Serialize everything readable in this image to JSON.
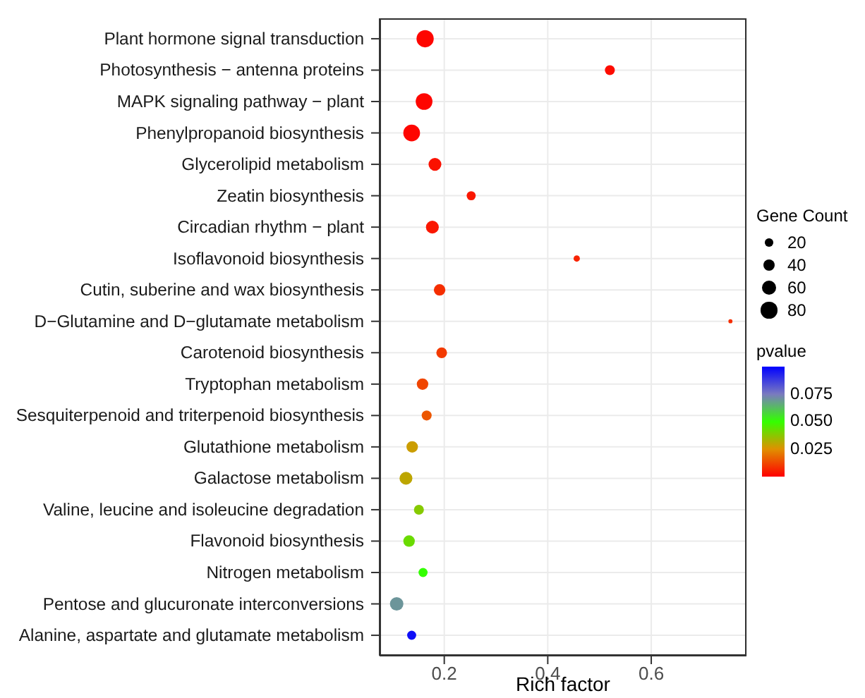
{
  "chart_data": {
    "type": "bubble",
    "orientation": "horizontal",
    "xlabel": "Rich factor",
    "legend_title": "Gene Count",
    "clabel": "pvalue",
    "grid": true,
    "categories": [
      "Plant hormone signal transduction",
      "Photosynthesis − antenna proteins",
      "MAPK signaling pathway − plant",
      "Phenylpropanoid biosynthesis",
      "Glycerolipid metabolism",
      "Zeatin biosynthesis",
      "Circadian rhythm − plant",
      "Isoflavonoid biosynthesis",
      "Cutin, suberine and wax biosynthesis",
      "D−Glutamine and D−glutamate metabolism",
      "Carotenoid biosynthesis",
      "Tryptophan metabolism",
      "Sesquiterpenoid and triterpenoid biosynthesis",
      "Glutathione metabolism",
      "Galactose metabolism",
      "Valine, leucine and isoleucine degradation",
      "Flavonoid biosynthesis",
      "Nitrogen metabolism",
      "Pentose and glucuronate interconversions",
      "Alanine, aspartate and glutamate metabolism"
    ],
    "values": [
      0.163,
      0.52,
      0.161,
      0.137,
      0.182,
      0.252,
      0.177,
      0.456,
      0.191,
      0.753,
      0.195,
      0.158,
      0.166,
      0.138,
      0.126,
      0.151,
      0.132,
      0.159,
      0.108,
      0.137
    ],
    "sizes": [
      90,
      30,
      85,
      85,
      50,
      25,
      50,
      12,
      40,
      5,
      35,
      40,
      30,
      40,
      50,
      30,
      40,
      25,
      55,
      25
    ],
    "size_legend": [
      20,
      40,
      60,
      80
    ],
    "cvalues": [
      0.001,
      0.002,
      0.001,
      0.001,
      0.003,
      0.004,
      0.004,
      0.006,
      0.008,
      0.008,
      0.01,
      0.012,
      0.015,
      0.028,
      0.03,
      0.038,
      0.042,
      0.05,
      0.07,
      0.097
    ],
    "clim": [
      0,
      0.1
    ],
    "cticks": [
      {
        "value": 0.025,
        "label": "0.025"
      },
      {
        "value": 0.05,
        "label": "0.050"
      },
      {
        "value": 0.075,
        "label": "0.075"
      }
    ],
    "xlim": [
      0.075,
      0.784
    ],
    "xticks": [
      0.2,
      0.4,
      0.6
    ]
  }
}
